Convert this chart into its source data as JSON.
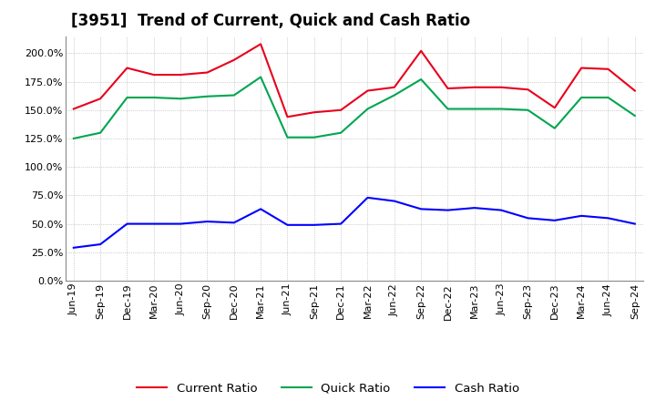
{
  "title": "[3951]  Trend of Current, Quick and Cash Ratio",
  "x_labels": [
    "Jun-19",
    "Sep-19",
    "Dec-19",
    "Mar-20",
    "Jun-20",
    "Sep-20",
    "Dec-20",
    "Mar-21",
    "Jun-21",
    "Sep-21",
    "Dec-21",
    "Mar-22",
    "Jun-22",
    "Sep-22",
    "Dec-22",
    "Mar-23",
    "Jun-23",
    "Sep-23",
    "Dec-23",
    "Mar-24",
    "Jun-24",
    "Sep-24"
  ],
  "current_ratio": [
    151,
    160,
    187,
    181,
    181,
    183,
    194,
    208,
    144,
    148,
    150,
    167,
    170,
    202,
    169,
    170,
    170,
    168,
    152,
    187,
    186,
    167
  ],
  "quick_ratio": [
    125,
    130,
    161,
    161,
    160,
    162,
    163,
    179,
    126,
    126,
    130,
    151,
    163,
    177,
    151,
    151,
    151,
    150,
    134,
    161,
    161,
    145
  ],
  "cash_ratio": [
    29,
    32,
    50,
    50,
    50,
    52,
    51,
    63,
    49,
    49,
    50,
    73,
    70,
    63,
    62,
    64,
    62,
    55,
    53,
    57,
    55,
    50
  ],
  "current_color": "#e8001c",
  "quick_color": "#00a550",
  "cash_color": "#0000ff",
  "ylim": [
    0,
    215
  ],
  "yticks": [
    0,
    25,
    50,
    75,
    100,
    125,
    150,
    175,
    200
  ],
  "background_color": "#ffffff",
  "plot_bg_color": "#ffffff",
  "grid_color": "#aaaaaa",
  "line_width": 1.5,
  "title_fontsize": 12,
  "tick_fontsize": 8,
  "legend_fontsize": 9.5
}
